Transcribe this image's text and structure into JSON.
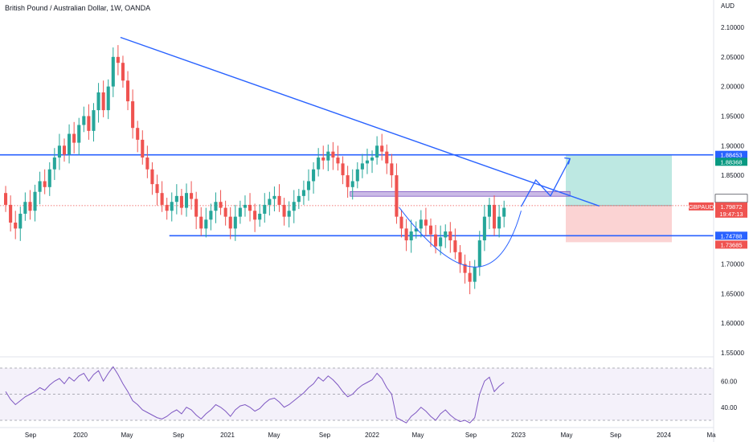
{
  "header": {
    "title": "British Pound / Australian Dollar, 1W, OANDA",
    "currency": "AUD"
  },
  "colors": {
    "up": "#26a69a",
    "down": "#ef5350",
    "drawing_blue": "#2962ff",
    "rsi_line": "#7e57c2",
    "zone": "#b39ddb",
    "target_zone": "#bde8e2",
    "stop_zone": "#fbd3d3",
    "price_tag_red": "#ef5350",
    "level_tag_blue": "#2962ff",
    "level_tag_green": "#089981"
  },
  "chart_data": {
    "type": "candlestick",
    "symbol": "GBPAUD",
    "price_axis": {
      "ylim": [
        1.55,
        2.12
      ],
      "ticks": [
        "2.10000",
        "2.05000",
        "2.00000",
        "1.95000",
        "1.90000",
        "1.85000",
        "1.80000",
        "1.75000",
        "1.70000",
        "1.65000",
        "1.60000",
        "1.55000"
      ]
    },
    "time_axis": {
      "labels": [
        "Sep",
        "2020",
        "May",
        "Sep",
        "2021",
        "May",
        "Sep",
        "2022",
        "May",
        "Sep",
        "2023",
        "May",
        "Sep",
        "2024",
        "Ma"
      ]
    },
    "ohlc": [
      [
        1.82,
        1.8
      ],
      [
        1.8,
        1.77
      ],
      [
        1.77,
        1.76
      ],
      [
        1.76,
        1.785
      ],
      [
        1.785,
        1.805
      ],
      [
        1.805,
        1.79
      ],
      [
        1.79,
        1.822
      ],
      [
        1.822,
        1.84
      ],
      [
        1.84,
        1.83
      ],
      [
        1.83,
        1.86
      ],
      [
        1.86,
        1.88
      ],
      [
        1.88,
        1.9
      ],
      [
        1.9,
        1.885
      ],
      [
        1.885,
        1.92
      ],
      [
        1.92,
        1.905
      ],
      [
        1.905,
        1.935
      ],
      [
        1.935,
        1.95
      ],
      [
        1.95,
        1.925
      ],
      [
        1.925,
        1.96
      ],
      [
        1.96,
        1.99
      ],
      [
        1.99,
        1.96
      ],
      [
        1.96,
        2.0
      ],
      [
        2.0,
        2.05
      ],
      [
        2.05,
        2.04
      ],
      [
        2.04,
        2.01
      ],
      [
        2.01,
        1.975
      ],
      [
        1.975,
        1.93
      ],
      [
        1.93,
        1.91
      ],
      [
        1.91,
        1.88
      ],
      [
        1.88,
        1.86
      ],
      [
        1.86,
        1.835
      ],
      [
        1.835,
        1.82
      ],
      [
        1.82,
        1.8
      ],
      [
        1.8,
        1.79
      ],
      [
        1.79,
        1.805
      ],
      [
        1.805,
        1.815
      ],
      [
        1.815,
        1.795
      ],
      [
        1.795,
        1.82
      ],
      [
        1.82,
        1.81
      ],
      [
        1.81,
        1.78
      ],
      [
        1.78,
        1.76
      ],
      [
        1.76,
        1.775
      ],
      [
        1.775,
        1.79
      ],
      [
        1.79,
        1.805
      ],
      [
        1.805,
        1.795
      ],
      [
        1.795,
        1.78
      ],
      [
        1.78,
        1.76
      ],
      [
        1.76,
        1.78
      ],
      [
        1.78,
        1.795
      ],
      [
        1.795,
        1.8
      ],
      [
        1.8,
        1.79
      ],
      [
        1.79,
        1.775
      ],
      [
        1.775,
        1.785
      ],
      [
        1.785,
        1.8
      ],
      [
        1.8,
        1.81
      ],
      [
        1.81,
        1.815
      ],
      [
        1.815,
        1.8
      ],
      [
        1.8,
        1.78
      ],
      [
        1.78,
        1.79
      ],
      [
        1.79,
        1.805
      ],
      [
        1.805,
        1.815
      ],
      [
        1.815,
        1.825
      ],
      [
        1.825,
        1.84
      ],
      [
        1.84,
        1.86
      ],
      [
        1.86,
        1.88
      ],
      [
        1.88,
        1.875
      ],
      [
        1.875,
        1.89
      ],
      [
        1.89,
        1.88
      ],
      [
        1.88,
        1.87
      ],
      [
        1.87,
        1.85
      ],
      [
        1.85,
        1.83
      ],
      [
        1.83,
        1.84
      ],
      [
        1.84,
        1.86
      ],
      [
        1.86,
        1.87
      ],
      [
        1.87,
        1.875
      ],
      [
        1.875,
        1.88
      ],
      [
        1.88,
        1.9
      ],
      [
        1.9,
        1.89
      ],
      [
        1.89,
        1.87
      ],
      [
        1.87,
        1.85
      ],
      [
        1.85,
        1.78
      ],
      [
        1.78,
        1.76
      ],
      [
        1.76,
        1.74
      ],
      [
        1.74,
        1.755
      ],
      [
        1.755,
        1.76
      ],
      [
        1.76,
        1.775
      ],
      [
        1.775,
        1.765
      ],
      [
        1.765,
        1.75
      ],
      [
        1.75,
        1.73
      ],
      [
        1.73,
        1.745
      ],
      [
        1.745,
        1.755
      ],
      [
        1.755,
        1.74
      ],
      [
        1.74,
        1.72
      ],
      [
        1.72,
        1.7
      ],
      [
        1.7,
        1.685
      ],
      [
        1.685,
        1.67
      ],
      [
        1.67,
        1.695
      ],
      [
        1.695,
        1.74
      ],
      [
        1.74,
        1.78
      ],
      [
        1.78,
        1.8
      ],
      [
        1.8,
        1.76
      ],
      [
        1.76,
        1.78
      ],
      [
        1.78,
        1.795
      ]
    ],
    "rsi": {
      "levels": [
        70,
        50,
        30
      ],
      "ticks": [
        "60.00",
        "40.00"
      ],
      "values": [
        52,
        46,
        42,
        45,
        48,
        50,
        52,
        55,
        53,
        57,
        60,
        62,
        58,
        63,
        60,
        64,
        66,
        60,
        65,
        68,
        60,
        66,
        71,
        65,
        58,
        52,
        45,
        42,
        38,
        36,
        34,
        32,
        31,
        33,
        36,
        38,
        35,
        40,
        38,
        34,
        31,
        35,
        38,
        42,
        40,
        37,
        33,
        38,
        41,
        42,
        40,
        37,
        39,
        43,
        46,
        47,
        44,
        40,
        42,
        45,
        48,
        51,
        55,
        58,
        63,
        60,
        64,
        61,
        57,
        52,
        48,
        50,
        54,
        57,
        59,
        61,
        66,
        62,
        55,
        50,
        32,
        30,
        28,
        33,
        36,
        40,
        37,
        33,
        30,
        35,
        38,
        34,
        31,
        29,
        30,
        28,
        32,
        50,
        60,
        63,
        52,
        56,
        59
      ]
    },
    "annotations": {
      "trendline": {
        "from": [
          24,
          2.083
        ],
        "to": [
          122,
          1.798
        ]
      },
      "resistance_line": {
        "price": 1.8845
      },
      "support_line": {
        "price": 1.7479,
        "from_index": 34
      },
      "supply_zone": {
        "top": 1.8225,
        "bottom": 1.8145,
        "from_index": 71,
        "to_index": 116
      },
      "projection_path": [
        [
          106,
          1.797
        ],
        [
          109,
          1.842
        ],
        [
          112,
          1.815
        ],
        [
          116,
          1.878
        ]
      ],
      "cup_curve": {
        "start": [
          81,
          1.796
        ],
        "bottom": [
          100,
          1.654
        ],
        "end": [
          106,
          1.79
        ]
      },
      "position": {
        "entry": 1.7988,
        "target": 1.8845,
        "stop": 1.7369
      }
    },
    "price_tags": [
      {
        "label": "1.88453",
        "price": 1.88453,
        "style": "blue"
      },
      {
        "label": "1.88368",
        "price": 1.88368,
        "style": "green"
      },
      {
        "label": "1.79881",
        "price": 1.79881,
        "style": "outline"
      },
      {
        "label": "1.79872",
        "price": 1.79872,
        "style": "red",
        "sub": "19:47:13"
      },
      {
        "label": "1.74788",
        "price": 1.74788,
        "style": "blue"
      },
      {
        "label": "1.73685",
        "price": 1.73685,
        "style": "red"
      }
    ],
    "symbol_tag": "GBPAUD"
  }
}
